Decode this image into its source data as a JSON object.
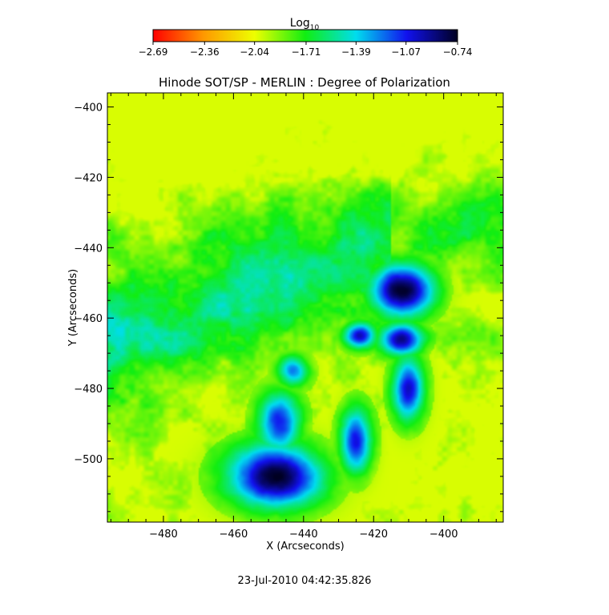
{
  "chart_data": {
    "type": "heatmap",
    "title": "Hinode SOT/SP - MERLIN : Degree of Polarization",
    "xlabel": "X (Arcseconds)",
    "ylabel": "Y (Arcseconds)",
    "xlim": [
      -496,
      -383
    ],
    "ylim": [
      -518,
      -396
    ],
    "xticks": [
      -480,
      -460,
      -440,
      -420,
      -400
    ],
    "yticks": [
      -400,
      -420,
      -440,
      -460,
      -480,
      -500
    ],
    "colorbar": {
      "label_main": "Log",
      "label_sub": "10",
      "ticks": [
        -2.69,
        -2.36,
        -2.04,
        -1.71,
        -1.39,
        -1.07,
        -0.74
      ],
      "range": [
        -2.69,
        -0.74
      ],
      "colors": [
        "#ff0000",
        "#ff9900",
        "#eeff00",
        "#11ee11",
        "#00ddee",
        "#1111ee",
        "#000022"
      ]
    },
    "features": [
      {
        "x": -448,
        "y": -505,
        "sx": 9,
        "sy": 6,
        "v": 1.0
      },
      {
        "x": -412,
        "y": -452,
        "sx": 6,
        "sy": 5,
        "v": 1.0
      },
      {
        "x": -412,
        "y": -466,
        "sx": 4,
        "sy": 3,
        "v": 0.85
      },
      {
        "x": -424,
        "y": -465,
        "sx": 3,
        "sy": 2.5,
        "v": 0.8
      },
      {
        "x": -410,
        "y": -480,
        "sx": 3,
        "sy": 6,
        "v": 0.8
      },
      {
        "x": -447,
        "y": -490,
        "sx": 4,
        "sy": 6,
        "v": 0.7
      },
      {
        "x": -425,
        "y": -495,
        "sx": 3,
        "sy": 6,
        "v": 0.75
      },
      {
        "x": -443,
        "y": -475,
        "sx": 3,
        "sy": 3,
        "v": 0.6
      }
    ],
    "timestamp": "23-Jul-2010 04:42:35.826"
  }
}
